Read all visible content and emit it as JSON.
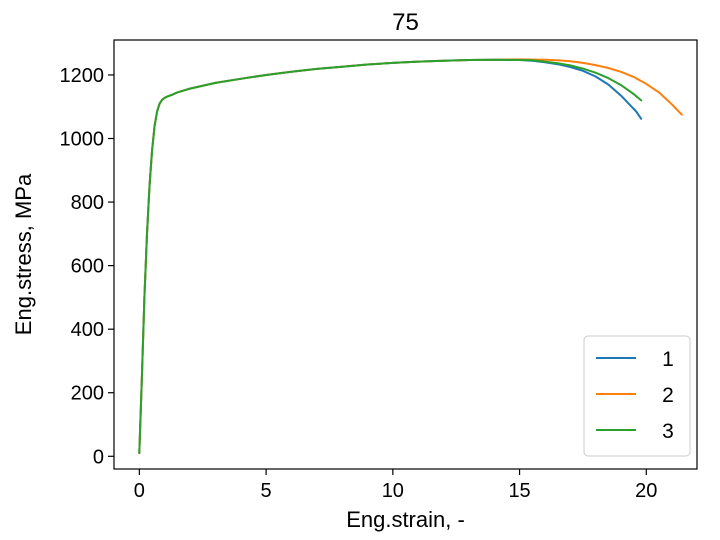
{
  "chart_data": {
    "type": "line",
    "title": "75",
    "xlabel": "Eng.strain, -",
    "ylabel": "Eng.stress, MPa",
    "xlim": [
      -1.0,
      22.0
    ],
    "ylim": [
      -40,
      1310
    ],
    "xticks": [
      0,
      5,
      10,
      15,
      20
    ],
    "yticks": [
      0,
      200,
      400,
      600,
      800,
      1000,
      1200
    ],
    "grid": false,
    "legend_position": "lower-right",
    "series": [
      {
        "name": "1",
        "color": "#1f77b4",
        "x": [
          0.0,
          0.1,
          0.2,
          0.3,
          0.4,
          0.5,
          0.6,
          0.7,
          0.8,
          0.9,
          1.0,
          1.1,
          1.3,
          1.5,
          2.0,
          3.0,
          4.0,
          5.0,
          6.0,
          7.0,
          8.0,
          9.0,
          10.0,
          11.0,
          12.0,
          13.0,
          14.0,
          15.0,
          15.5,
          16.0,
          16.5,
          17.0,
          17.5,
          18.0,
          18.5,
          19.0,
          19.3,
          19.6,
          19.8
        ],
        "y": [
          10,
          250,
          500,
          700,
          850,
          960,
          1040,
          1085,
          1110,
          1122,
          1128,
          1132,
          1138,
          1145,
          1157,
          1175,
          1188,
          1200,
          1210,
          1219,
          1226,
          1233,
          1238,
          1242,
          1245,
          1247,
          1248,
          1247,
          1245,
          1240,
          1234,
          1225,
          1213,
          1195,
          1170,
          1135,
          1110,
          1085,
          1062
        ]
      },
      {
        "name": "2",
        "color": "#ff7f0e",
        "x": [
          0.0,
          0.1,
          0.2,
          0.3,
          0.4,
          0.5,
          0.6,
          0.7,
          0.8,
          0.9,
          1.0,
          1.1,
          1.3,
          1.5,
          2.0,
          3.0,
          4.0,
          5.0,
          6.0,
          7.0,
          8.0,
          9.0,
          10.0,
          11.0,
          12.0,
          13.0,
          14.0,
          15.0,
          16.0,
          16.5,
          17.0,
          17.5,
          18.0,
          18.5,
          19.0,
          19.5,
          20.0,
          20.5,
          21.0,
          21.4
        ],
        "y": [
          10,
          250,
          500,
          700,
          850,
          960,
          1040,
          1085,
          1110,
          1122,
          1128,
          1132,
          1138,
          1145,
          1157,
          1175,
          1188,
          1200,
          1210,
          1219,
          1226,
          1233,
          1238,
          1242,
          1245,
          1247,
          1248,
          1249,
          1248,
          1246,
          1243,
          1238,
          1231,
          1222,
          1210,
          1194,
          1172,
          1145,
          1108,
          1075
        ]
      },
      {
        "name": "3",
        "color": "#2ca02c",
        "x": [
          0.0,
          0.1,
          0.2,
          0.3,
          0.4,
          0.5,
          0.6,
          0.7,
          0.8,
          0.9,
          1.0,
          1.1,
          1.3,
          1.5,
          2.0,
          3.0,
          4.0,
          5.0,
          6.0,
          7.0,
          8.0,
          9.0,
          10.0,
          11.0,
          12.0,
          13.0,
          14.0,
          15.0,
          15.5,
          16.0,
          16.5,
          17.0,
          17.5,
          18.0,
          18.5,
          19.0,
          19.5,
          19.8
        ],
        "y": [
          10,
          250,
          500,
          700,
          850,
          960,
          1040,
          1085,
          1110,
          1122,
          1128,
          1132,
          1138,
          1145,
          1157,
          1175,
          1188,
          1200,
          1210,
          1219,
          1226,
          1233,
          1238,
          1242,
          1245,
          1247,
          1248,
          1247,
          1246,
          1242,
          1237,
          1230,
          1220,
          1207,
          1190,
          1168,
          1140,
          1120
        ]
      }
    ]
  }
}
